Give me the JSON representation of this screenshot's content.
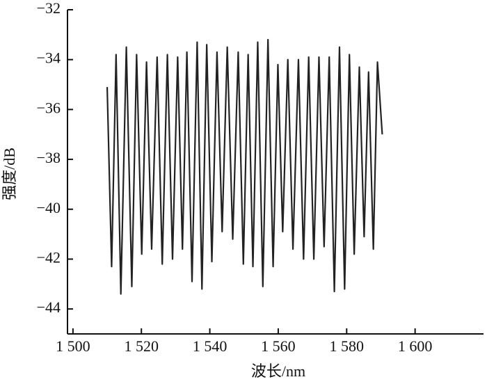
{
  "chart_data": {
    "type": "line",
    "x_label": "波长/nm",
    "y_label": "强度/dB",
    "xlim": [
      1498.4,
      1620
    ],
    "ylim": [
      -45,
      -32
    ],
    "xticks": [
      {
        "value": 1500,
        "label": "1 500"
      },
      {
        "value": 1520,
        "label": "1 520"
      },
      {
        "value": 1540,
        "label": "1 540"
      },
      {
        "value": 1560,
        "label": "1 560"
      },
      {
        "value": 1580,
        "label": "1 580"
      },
      {
        "value": 1600,
        "label": "1 600"
      }
    ],
    "yticks": [
      {
        "value": -44,
        "label": "−44"
      },
      {
        "value": -42,
        "label": "−42"
      },
      {
        "value": -40,
        "label": "−40"
      },
      {
        "value": -38,
        "label": "−38"
      },
      {
        "value": -36,
        "label": "−36"
      },
      {
        "value": -34,
        "label": "−34"
      },
      {
        "value": -32,
        "label": "−32"
      }
    ],
    "color": "#222222",
    "x": [
      1510.0,
      1511.3,
      1512.6,
      1514.0,
      1515.6,
      1517.2,
      1518.6,
      1520.1,
      1521.5,
      1523.0,
      1524.6,
      1526.1,
      1527.6,
      1529.1,
      1530.6,
      1532.0,
      1533.3,
      1534.8,
      1536.3,
      1537.7,
      1539.1,
      1540.6,
      1542.1,
      1543.6,
      1545.1,
      1546.7,
      1548.3,
      1549.8,
      1551.2,
      1552.6,
      1554.0,
      1555.5,
      1557.0,
      1558.5,
      1559.9,
      1561.3,
      1562.8,
      1564.3,
      1565.9,
      1567.4,
      1568.9,
      1570.4,
      1571.9,
      1573.4,
      1574.9,
      1576.4,
      1577.9,
      1579.4,
      1580.8,
      1582.2,
      1583.7,
      1585.1,
      1586.4,
      1587.8,
      1589.0,
      1590.4
    ],
    "values": [
      -35.1,
      -42.3,
      -33.8,
      -43.4,
      -33.5,
      -43.1,
      -33.8,
      -41.8,
      -34.1,
      -41.6,
      -33.9,
      -42.2,
      -33.8,
      -42.0,
      -33.9,
      -41.6,
      -33.7,
      -42.9,
      -33.3,
      -43.2,
      -33.4,
      -42.1,
      -33.7,
      -40.9,
      -33.5,
      -41.2,
      -33.7,
      -42.2,
      -33.8,
      -42.3,
      -33.3,
      -43.1,
      -33.2,
      -42.3,
      -34.2,
      -40.9,
      -34.0,
      -41.6,
      -34.0,
      -42.0,
      -33.9,
      -42.0,
      -33.9,
      -41.5,
      -33.9,
      -43.3,
      -33.5,
      -43.2,
      -33.8,
      -41.8,
      -34.3,
      -41.1,
      -34.5,
      -41.6,
      -34.1,
      -37.0
    ]
  }
}
